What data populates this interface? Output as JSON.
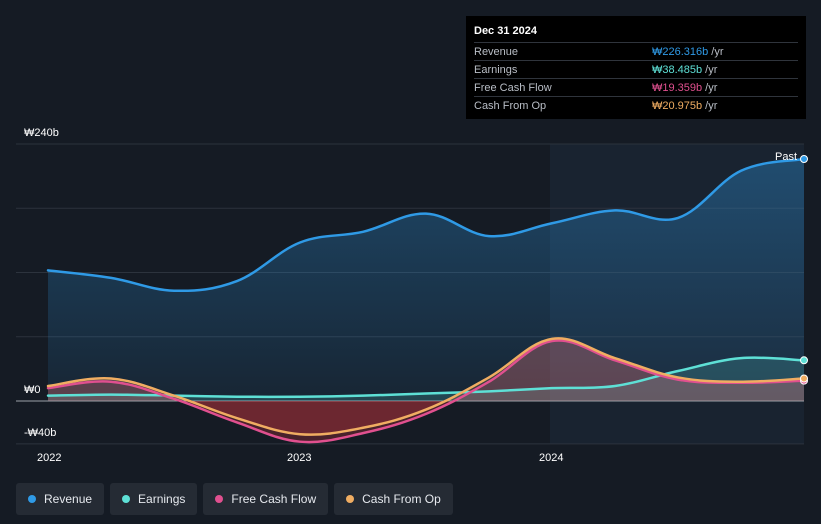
{
  "tooltip": {
    "date": "Dec 31 2024",
    "rows": [
      {
        "label": "Revenue",
        "value": "₩226.316b",
        "unit": "/yr",
        "color": "#2f9ae6"
      },
      {
        "label": "Earnings",
        "value": "₩38.485b",
        "unit": "/yr",
        "color": "#5ee0d6"
      },
      {
        "label": "Free Cash Flow",
        "value": "₩19.359b",
        "unit": "/yr",
        "color": "#e0508f"
      },
      {
        "label": "Cash From Op",
        "value": "₩20.975b",
        "unit": "/yr",
        "color": "#f0ad62"
      }
    ]
  },
  "legend": [
    {
      "label": "Revenue",
      "color": "#2f9ae6"
    },
    {
      "label": "Earnings",
      "color": "#5ee0d6"
    },
    {
      "label": "Free Cash Flow",
      "color": "#e0508f"
    },
    {
      "label": "Cash From Op",
      "color": "#f0ad62"
    }
  ],
  "chart_data": {
    "type": "line",
    "title": "",
    "past_label": "Past",
    "xlabel": "",
    "ylabel": "",
    "x_tick_labels": [
      "2022",
      "2023",
      "2024"
    ],
    "x_tick_values": [
      2022.0,
      2023.0,
      2024.0
    ],
    "y_tick_labels": [
      "₩240b",
      "₩0",
      "-₩40b"
    ],
    "y_tick_values": [
      240,
      0,
      -40
    ],
    "xlim": [
      2022.0,
      2025.0
    ],
    "ylim": [
      -40,
      240
    ],
    "highlight_from": 2024.0,
    "series": [
      {
        "name": "Revenue",
        "color": "#2f9ae6",
        "x": [
          2022.0,
          2022.25,
          2022.5,
          2022.75,
          2023.0,
          2023.25,
          2023.5,
          2023.75,
          2024.0,
          2024.25,
          2024.5,
          2024.75,
          2025.0
        ],
        "values": [
          122,
          115,
          103,
          112,
          148,
          158,
          175,
          154,
          166,
          178,
          171,
          215,
          226
        ]
      },
      {
        "name": "Earnings",
        "color": "#5ee0d6",
        "x": [
          2022.0,
          2022.25,
          2022.5,
          2022.75,
          2023.0,
          2023.25,
          2023.5,
          2023.75,
          2024.0,
          2024.25,
          2024.5,
          2024.75,
          2025.0
        ],
        "values": [
          5,
          6,
          5,
          4,
          4,
          5,
          7,
          9,
          12,
          14,
          28,
          40,
          38
        ]
      },
      {
        "name": "Free Cash Flow",
        "color": "#e0508f",
        "x": [
          2022.0,
          2022.25,
          2022.5,
          2022.75,
          2023.0,
          2023.25,
          2023.5,
          2023.75,
          2024.0,
          2024.25,
          2024.5,
          2024.75,
          2025.0
        ],
        "values": [
          12,
          18,
          2,
          -20,
          -38,
          -30,
          -12,
          18,
          56,
          38,
          20,
          17,
          19
        ]
      },
      {
        "name": "Cash From Op",
        "color": "#f0ad62",
        "x": [
          2022.0,
          2022.25,
          2022.5,
          2022.75,
          2023.0,
          2023.25,
          2023.5,
          2023.75,
          2024.0,
          2024.25,
          2024.5,
          2024.75,
          2025.0
        ],
        "values": [
          14,
          21,
          5,
          -16,
          -31,
          -25,
          -8,
          22,
          58,
          40,
          22,
          18,
          21
        ]
      }
    ]
  }
}
